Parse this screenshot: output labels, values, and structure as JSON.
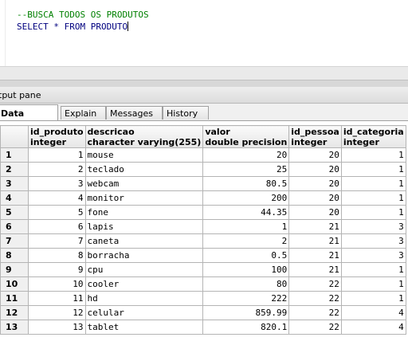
{
  "editor": {
    "comment_line": "--BUSCA TODOS OS PRODUTOS",
    "query_line": "SELECT * FROM PRODUTO"
  },
  "output_pane": {
    "title": "tput pane",
    "tabs": [
      "Data Output",
      "Explain",
      "Messages",
      "History"
    ],
    "active_tab": "Data Output"
  },
  "grid": {
    "columns": [
      {
        "name": "id_produto",
        "type": "integer"
      },
      {
        "name": "descricao",
        "type": "character varying(255)"
      },
      {
        "name": "valor",
        "type": "double precision"
      },
      {
        "name": "id_pessoa",
        "type": "integer"
      },
      {
        "name": "id_categoria",
        "type": "integer"
      }
    ],
    "rows": [
      {
        "n": "1",
        "cells": [
          "1",
          "mouse",
          "20",
          "20",
          "1"
        ]
      },
      {
        "n": "2",
        "cells": [
          "2",
          "teclado",
          "25",
          "20",
          "1"
        ]
      },
      {
        "n": "3",
        "cells": [
          "3",
          "webcam",
          "80.5",
          "20",
          "1"
        ]
      },
      {
        "n": "4",
        "cells": [
          "4",
          "monitor",
          "200",
          "20",
          "1"
        ]
      },
      {
        "n": "5",
        "cells": [
          "5",
          "fone",
          "44.35",
          "20",
          "1"
        ]
      },
      {
        "n": "6",
        "cells": [
          "6",
          "lapis",
          "1",
          "21",
          "3"
        ]
      },
      {
        "n": "7",
        "cells": [
          "7",
          "caneta",
          "2",
          "21",
          "3"
        ]
      },
      {
        "n": "8",
        "cells": [
          "8",
          "borracha",
          "0.5",
          "21",
          "3"
        ]
      },
      {
        "n": "9",
        "cells": [
          "9",
          "cpu",
          "100",
          "21",
          "1"
        ]
      },
      {
        "n": "10",
        "cells": [
          "10",
          "cooler",
          "80",
          "22",
          "1"
        ]
      },
      {
        "n": "11",
        "cells": [
          "11",
          "hd",
          "222",
          "22",
          "1"
        ]
      },
      {
        "n": "12",
        "cells": [
          "12",
          "celular",
          "859.99",
          "22",
          "4"
        ]
      },
      {
        "n": "13",
        "cells": [
          "13",
          "tablet",
          "820.1",
          "22",
          "4"
        ]
      }
    ]
  },
  "colors": {
    "comment": "#008000",
    "keyword": "#00007f",
    "grid_border": "#b4b4b4",
    "header_bg": "#e6e6e6"
  }
}
